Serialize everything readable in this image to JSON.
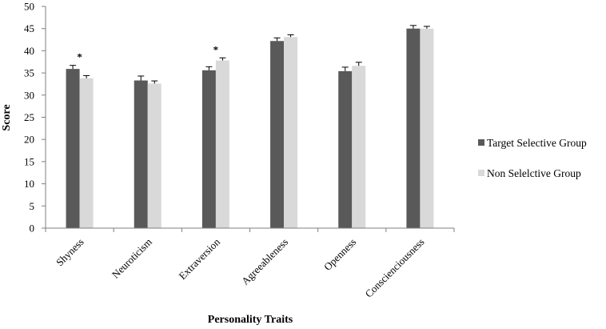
{
  "chart_data": {
    "type": "bar",
    "title": "",
    "xlabel": "Personality Traits",
    "ylabel": "Score",
    "ylim": [
      0,
      50
    ],
    "yticks": [
      0,
      5,
      10,
      15,
      20,
      25,
      30,
      35,
      40,
      45,
      50
    ],
    "categories": [
      "Shyness",
      "Neuroticism",
      "Extraversion",
      "Agreeableness",
      "Openness",
      "Conscienciousness"
    ],
    "series": [
      {
        "name": "Target Selective Group",
        "color": "#595959",
        "values": [
          35.9,
          33.3,
          35.6,
          42.2,
          35.4,
          45.0
        ],
        "errors": [
          0.8,
          1.0,
          0.8,
          0.7,
          0.9,
          0.7
        ]
      },
      {
        "name": "Non Selelctive Group",
        "color": "#d9d9d9",
        "values": [
          33.8,
          32.6,
          37.8,
          43.1,
          36.6,
          45.0
        ],
        "errors": [
          0.6,
          0.6,
          0.6,
          0.5,
          0.8,
          0.5
        ]
      }
    ],
    "annotations": [
      {
        "category": "Shyness",
        "text": "*"
      },
      {
        "category": "Extraversion",
        "text": "*"
      }
    ],
    "grid": false,
    "legend_position": "right"
  }
}
